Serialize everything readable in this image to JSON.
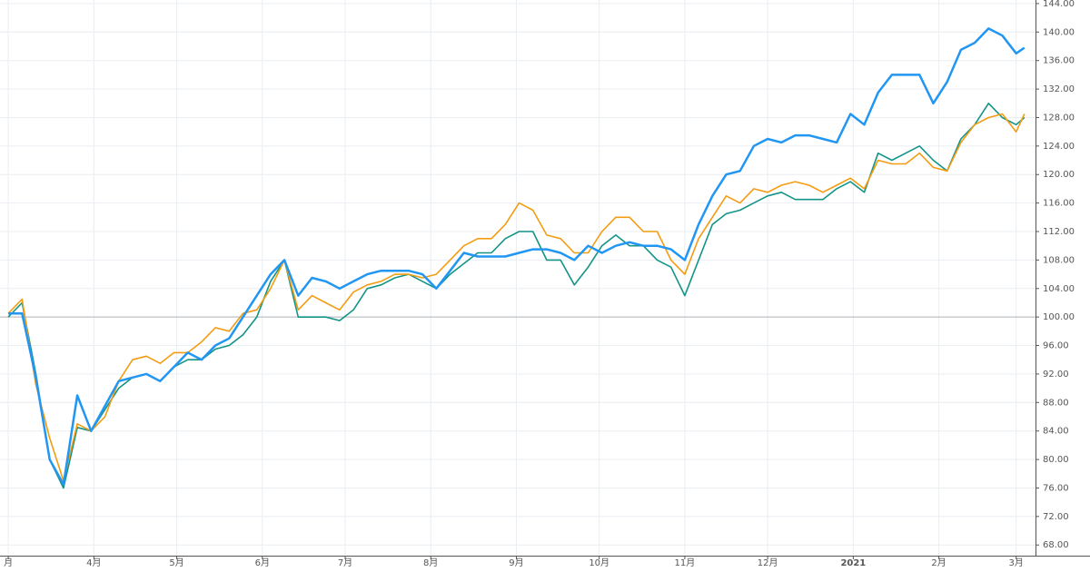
{
  "chart_data": {
    "type": "line",
    "x": [
      0,
      5,
      10,
      15,
      20,
      25,
      30,
      35,
      40,
      45,
      50,
      55,
      60,
      65,
      70,
      75,
      80,
      85,
      90,
      95,
      100,
      105,
      110,
      115,
      120,
      125,
      130,
      135,
      140,
      145,
      150,
      155,
      160,
      165,
      170,
      175,
      180,
      185,
      190,
      195,
      200,
      205,
      210,
      215,
      220,
      225,
      230,
      235,
      240,
      245,
      250,
      255,
      260,
      265,
      270,
      275,
      280,
      285,
      290,
      295,
      300,
      305,
      310,
      315,
      320,
      325,
      330,
      335,
      340,
      345,
      350,
      355,
      360,
      365,
      368
    ],
    "series": [
      {
        "color": "#139487",
        "values": [
          100,
          102,
          92,
          80,
          76,
          84.5,
          84,
          87,
          90,
          91.5,
          92,
          91,
          93,
          94,
          94,
          95.5,
          96,
          97.5,
          100,
          105,
          108,
          100,
          100,
          100,
          99.5,
          101,
          104,
          104.5,
          105.5,
          106,
          105,
          104,
          106,
          107.5,
          109,
          109,
          111,
          112,
          112,
          108,
          108,
          104.5,
          107,
          110,
          111.5,
          110,
          110,
          108,
          107,
          103,
          108,
          113,
          114.5,
          115,
          116,
          117,
          117.5,
          116.5,
          116.5,
          116.5,
          118,
          119,
          117.5,
          123,
          122,
          123,
          124,
          122,
          120.5,
          125,
          127,
          130,
          128,
          127,
          128
        ]
      },
      {
        "color": "#f39c12",
        "values": [
          100.5,
          102.5,
          90.5,
          83,
          77,
          85,
          84,
          86,
          91,
          94,
          94.5,
          93.5,
          95,
          95,
          96.5,
          98.5,
          98,
          100.5,
          101,
          104,
          108,
          101,
          103,
          102,
          101,
          103.5,
          104.5,
          105,
          106,
          106,
          105.5,
          106,
          108,
          110,
          111,
          111,
          113,
          116,
          115,
          111.5,
          111,
          109,
          109,
          112,
          114,
          114,
          112,
          112,
          108,
          106,
          111,
          114,
          117,
          116,
          118,
          117.5,
          118.5,
          119,
          118.5,
          117.5,
          118.5,
          119.5,
          118,
          122,
          121.5,
          121.5,
          123,
          121,
          120.5,
          124.5,
          127,
          128,
          128.5,
          126,
          128.5
        ]
      },
      {
        "color": "#2196f3",
        "values": [
          100.5,
          100.5,
          91.5,
          80,
          76.5,
          89,
          84,
          87.5,
          91,
          91.5,
          92,
          91,
          93,
          95,
          94,
          96,
          97,
          100,
          103,
          106,
          108,
          103,
          105.5,
          105,
          104,
          105,
          106,
          106.5,
          106.5,
          106.5,
          106,
          104,
          106.5,
          109,
          108.5,
          108.5,
          108.5,
          109,
          109.5,
          109.5,
          109,
          108,
          110,
          109,
          110,
          110.5,
          110,
          110,
          109.5,
          108,
          113,
          117,
          120,
          120.5,
          124,
          125,
          124.5,
          125.5,
          125.5,
          125,
          124.5,
          128.5,
          127,
          131.5,
          134,
          134,
          134,
          130,
          133,
          137.5,
          138.5,
          140.5,
          139.5,
          137,
          137.8
        ]
      }
    ],
    "baseline": 100,
    "xlim": [
      -3,
      372
    ],
    "xticks": [
      {
        "value": 0,
        "label": "月"
      },
      {
        "value": 31,
        "label": "4月"
      },
      {
        "value": 61,
        "label": "5月"
      },
      {
        "value": 92,
        "label": "6月"
      },
      {
        "value": 122,
        "label": "7月"
      },
      {
        "value": 153,
        "label": "8月"
      },
      {
        "value": 184,
        "label": "9月"
      },
      {
        "value": 214,
        "label": "10月"
      },
      {
        "value": 245,
        "label": "11月"
      },
      {
        "value": 275,
        "label": "12月"
      },
      {
        "value": 306,
        "label": "2021"
      },
      {
        "value": 337,
        "label": "2月"
      },
      {
        "value": 365,
        "label": "3月"
      }
    ],
    "ylim": [
      66.5,
      144.5
    ],
    "yticks": [
      {
        "value": 68,
        "label": "68.00"
      },
      {
        "value": 72,
        "label": "72.00"
      },
      {
        "value": 76,
        "label": "76.00"
      },
      {
        "value": 80,
        "label": "80.00"
      },
      {
        "value": 84,
        "label": "84.00"
      },
      {
        "value": 88,
        "label": "88.00"
      },
      {
        "value": 92,
        "label": "92.00"
      },
      {
        "value": 96,
        "label": "96.00"
      },
      {
        "value": 100,
        "label": "100.00"
      },
      {
        "value": 104,
        "label": "104.00"
      },
      {
        "value": 108,
        "label": "108.00"
      },
      {
        "value": 112,
        "label": "112.00"
      },
      {
        "value": 116,
        "label": "116.00"
      },
      {
        "value": 120,
        "label": "120.00"
      },
      {
        "value": 124,
        "label": "124.00"
      },
      {
        "value": 128,
        "label": "128.00"
      },
      {
        "value": 132,
        "label": "132.00"
      },
      {
        "value": 136,
        "label": "136.00"
      },
      {
        "value": 140,
        "label": "140.00"
      },
      {
        "value": 144,
        "label": "144.00"
      }
    ],
    "grid": true
  }
}
